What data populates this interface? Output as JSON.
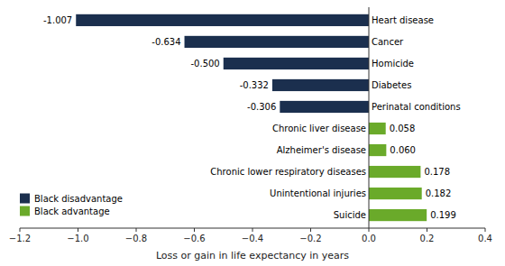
{
  "chart_data": {
    "type": "bar",
    "orientation": "horizontal",
    "stacked": true,
    "data_labels": true,
    "legend": "lower left",
    "xlabel": "Loss or gain in life expectancy in years",
    "categories": [
      "Heart disease",
      "Cancer",
      "Homicide",
      "Diabetes",
      "Perinatal conditions",
      "Chronic liver disease",
      "Alzheimer's disease",
      "Chronic lower respiratory diseases",
      "Unintentional injuries",
      "Suicide"
    ],
    "series": [
      {
        "name": "Black disadvantage",
        "color": "#1b2f4e",
        "values": [
          -1.007,
          -0.634,
          -0.5,
          -0.332,
          -0.306,
          null,
          null,
          null,
          null,
          null
        ],
        "value_labels": [
          "-1.007",
          "-0.634",
          "-0.500",
          "-0.332",
          "-0.306",
          null,
          null,
          null,
          null,
          null
        ]
      },
      {
        "name": "Black advantage",
        "color": "#6aaa2a",
        "values": [
          null,
          null,
          null,
          null,
          null,
          0.058,
          0.06,
          0.178,
          0.182,
          0.199
        ],
        "value_labels": [
          null,
          null,
          null,
          null,
          null,
          "0.058",
          "0.060",
          "0.178",
          "0.182",
          "0.199"
        ]
      }
    ],
    "xlim": [
      -1.2,
      0.4
    ],
    "xticks": [
      {
        "value": -1.2,
        "label": "−1.2"
      },
      {
        "value": -1.0,
        "label": "−1.0"
      },
      {
        "value": -0.8,
        "label": "−0.8"
      },
      {
        "value": -0.6,
        "label": "−0.6"
      },
      {
        "value": -0.4,
        "label": "−0.4"
      },
      {
        "value": -0.2,
        "label": "−0.2"
      },
      {
        "value": 0.0,
        "label": "0.0"
      },
      0.2,
      0.4
    ]
  }
}
